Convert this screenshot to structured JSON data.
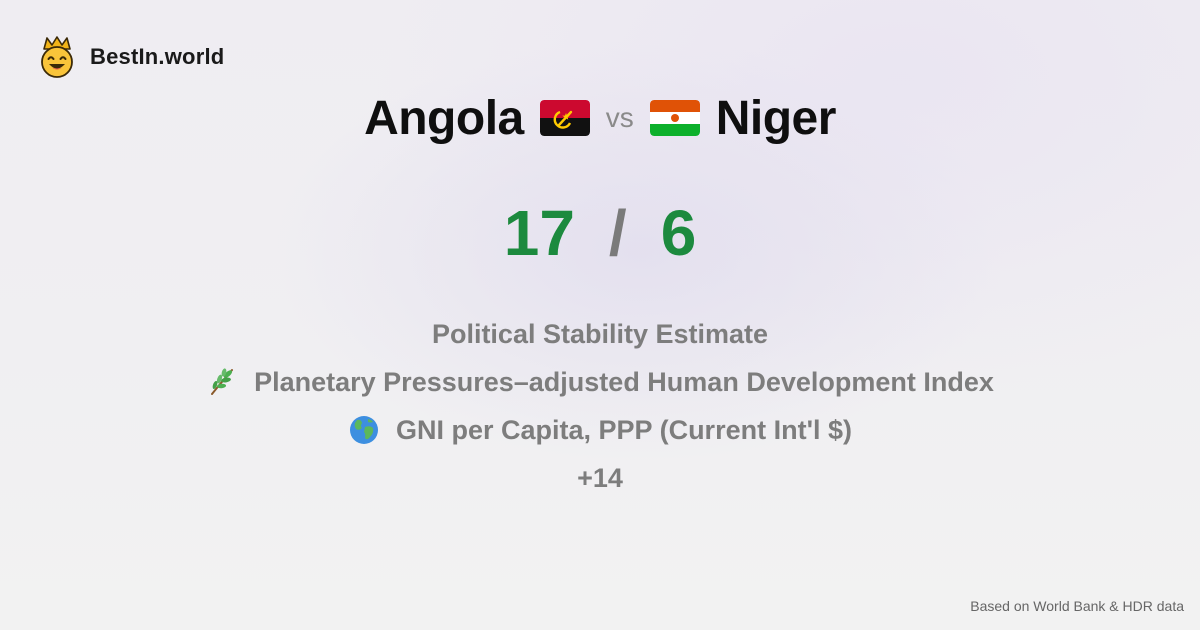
{
  "brand": {
    "name": "BestIn.world",
    "logo_icon": "crowned-smiley-icon"
  },
  "comparison": {
    "left_country": "Angola",
    "left_flag": "angola-flag-icon",
    "vs_label": "vs",
    "right_country": "Niger",
    "right_flag": "niger-flag-icon"
  },
  "score": {
    "left": "17",
    "separator": "/",
    "right": "6",
    "color": "#1c8a3e"
  },
  "metrics": [
    {
      "label": "Political Stability Estimate",
      "icon": ""
    },
    {
      "label": "Planetary Pressures–adjusted Human Development Index",
      "icon": "herb-icon"
    },
    {
      "label": "GNI per Capita, PPP (Current Int'l $)",
      "icon": "globe-icon"
    }
  ],
  "more": "+14",
  "footer": "Based on World Bank & HDR data"
}
